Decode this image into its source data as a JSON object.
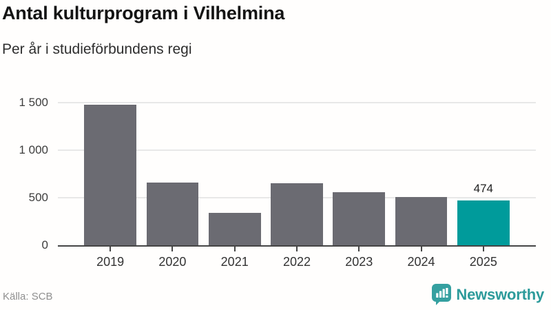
{
  "header": {
    "title": "Antal kulturprogram i Vilhelmina",
    "subtitle": "Per år i studieförbundens regi"
  },
  "chart_data": {
    "type": "bar",
    "title": "Antal kulturprogram i Vilhelmina",
    "subtitle": "Per år i studieförbundens regi",
    "categories": [
      "2019",
      "2020",
      "2021",
      "2022",
      "2023",
      "2024",
      "2025"
    ],
    "values": [
      1480,
      660,
      340,
      650,
      555,
      505,
      474
    ],
    "highlight_index": 6,
    "data_labels": {
      "6": "474"
    },
    "xlabel": "",
    "ylabel": "",
    "ylim": [
      0,
      1500
    ],
    "yticks": [
      {
        "value": 0,
        "label": "0"
      },
      {
        "value": 500,
        "label": "500"
      },
      {
        "value": 1000,
        "label": "1 000"
      },
      {
        "value": 1500,
        "label": "1 500"
      }
    ],
    "grid": "horizontal",
    "legend": "none",
    "colors": {
      "bar_default": "#6b6b72",
      "bar_highlight": "#009b9b",
      "gridline": "#e8e8e8",
      "axis_line": "#454545",
      "tick_label": "#3d3d3d"
    }
  },
  "footer": {
    "source": "Källa: SCB",
    "brand": {
      "name": "Newsworthy",
      "color": "#2d9b9b",
      "icon": "newsworthy-speech-bubble-bars-icon"
    }
  }
}
